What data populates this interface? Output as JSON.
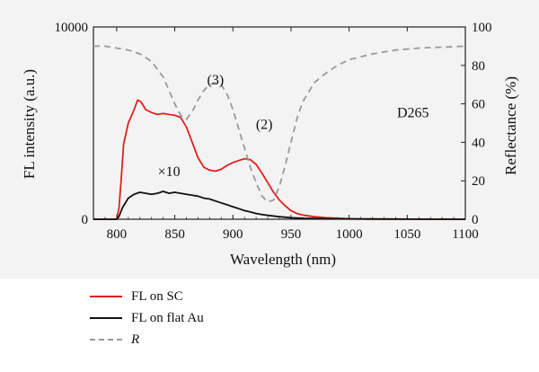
{
  "chart_data": {
    "type": "line",
    "xlabel": "Wavelength (nm)",
    "ylabel_left": "FL intensity (a.u.)",
    "ylabel_right": "Reflectance (%)",
    "xlim": [
      780,
      1100
    ],
    "ylim_left": [
      0,
      10000
    ],
    "ylim_right": [
      0,
      100
    ],
    "x_ticks": [
      "800",
      "850",
      "900",
      "950",
      "1000",
      "1050",
      "1100"
    ],
    "y_left_ticks": [
      "0",
      "10000"
    ],
    "y_right_ticks": [
      "0",
      "20",
      "40",
      "60",
      "80",
      "100"
    ],
    "grid": false,
    "legend_position": "below",
    "annotations": [
      {
        "text": "(3)",
        "x": 885,
        "y_left": 7000
      },
      {
        "text": "(2)",
        "x": 927,
        "y_left": 4700
      },
      {
        "text": "D265",
        "x": 1055,
        "y_left": 5300
      },
      {
        "text": "×10",
        "x": 845,
        "y_left": 2250
      }
    ],
    "series": [
      {
        "name": "FL on SC",
        "axis": "left",
        "color": "#e0201f",
        "dash": "solid",
        "x": [
          780,
          800,
          802,
          804,
          806,
          810,
          815,
          818,
          821,
          825,
          830,
          835,
          840,
          845,
          850,
          855,
          860,
          865,
          870,
          875,
          880,
          885,
          890,
          895,
          900,
          905,
          910,
          915,
          920,
          925,
          930,
          935,
          940,
          945,
          950,
          955,
          960,
          970,
          980,
          990,
          1000,
          1010,
          1020,
          1040,
          1060,
          1080,
          1100
        ],
        "values": [
          0,
          0,
          600,
          2200,
          3900,
          5000,
          5700,
          6200,
          6100,
          5700,
          5550,
          5450,
          5500,
          5450,
          5400,
          5300,
          4800,
          4000,
          3200,
          2700,
          2550,
          2500,
          2600,
          2800,
          2950,
          3050,
          3150,
          3100,
          2850,
          2400,
          1900,
          1400,
          1000,
          700,
          450,
          300,
          220,
          130,
          80,
          50,
          30,
          20,
          15,
          10,
          5,
          0,
          0
        ]
      },
      {
        "name": "FL on flat Au",
        "axis": "left",
        "color": "#111111",
        "dash": "solid",
        "x": [
          780,
          800,
          802,
          805,
          810,
          815,
          820,
          825,
          830,
          835,
          840,
          845,
          850,
          855,
          860,
          865,
          870,
          875,
          880,
          885,
          890,
          895,
          900,
          905,
          910,
          915,
          920,
          925,
          930,
          940,
          950,
          960,
          980,
          1000,
          1020,
          1050,
          1100
        ],
        "values": [
          0,
          0,
          150,
          600,
          1100,
          1300,
          1400,
          1350,
          1300,
          1350,
          1450,
          1350,
          1400,
          1350,
          1300,
          1250,
          1200,
          1100,
          1050,
          950,
          850,
          750,
          650,
          550,
          450,
          380,
          300,
          250,
          200,
          130,
          80,
          50,
          30,
          20,
          10,
          5,
          0
        ]
      },
      {
        "name": "R",
        "axis": "right",
        "color": "#999999",
        "dash": "dashed",
        "x": [
          780,
          790,
          800,
          810,
          820,
          830,
          840,
          850,
          855,
          860,
          865,
          870,
          875,
          880,
          885,
          890,
          895,
          900,
          905,
          910,
          915,
          920,
          925,
          930,
          935,
          940,
          945,
          950,
          955,
          960,
          970,
          980,
          990,
          1000,
          1020,
          1040,
          1060,
          1080,
          1100
        ],
        "values": [
          90,
          90,
          89,
          88,
          86,
          82,
          74,
          60,
          54,
          52,
          56,
          62,
          67,
          70,
          71,
          70,
          65,
          57,
          47,
          37,
          27,
          19,
          12,
          9,
          10,
          17,
          28,
          40,
          52,
          61,
          71,
          76,
          80,
          83,
          86,
          88,
          89,
          89.5,
          90
        ]
      }
    ]
  }
}
